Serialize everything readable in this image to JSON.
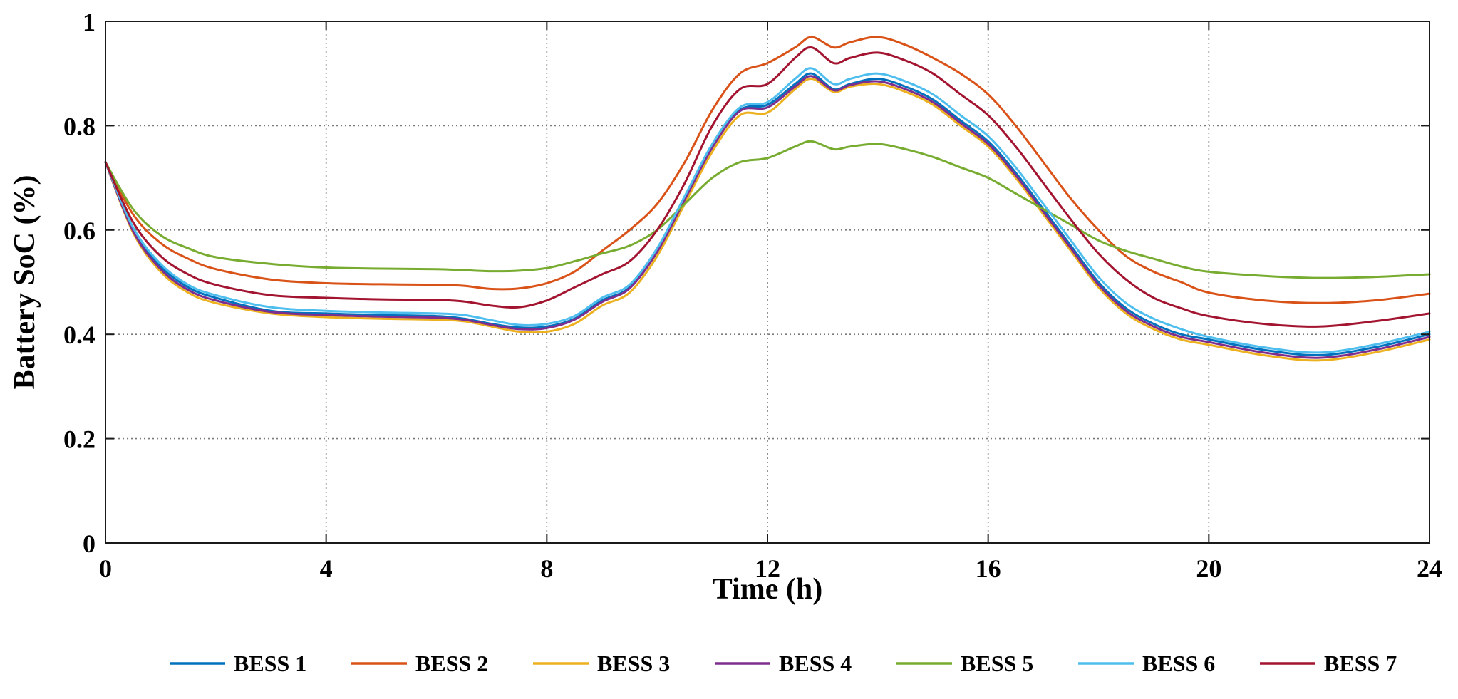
{
  "chart_data": {
    "type": "line",
    "title": "",
    "xlabel": "Time (h)",
    "ylabel": "Battery SoC (%)",
    "xlim": [
      0,
      24
    ],
    "ylim": [
      0,
      1
    ],
    "xticks": [
      0,
      4,
      8,
      12,
      16,
      20,
      24
    ],
    "yticks": [
      0,
      0.2,
      0.4,
      0.6,
      0.8,
      1
    ],
    "xtick_labels": [
      "0",
      "4",
      "8",
      "12",
      "16",
      "20",
      "24"
    ],
    "ytick_labels": [
      "0",
      "0.2",
      "0.4",
      "0.6",
      "0.8",
      "1"
    ],
    "grid": true,
    "legend_position": "bottom",
    "x": [
      0,
      0.5,
      1,
      1.5,
      2,
      3,
      4,
      5,
      6,
      6.5,
      7,
      7.5,
      8,
      8.5,
      9,
      9.5,
      10,
      10.5,
      11,
      11.5,
      12,
      12.5,
      12.8,
      13.2,
      13.5,
      14,
      14.5,
      15,
      15.5,
      16,
      16.5,
      17,
      17.5,
      18,
      18.5,
      19,
      19.5,
      20,
      21,
      22,
      23,
      24
    ],
    "series": [
      {
        "name": "BESS 1",
        "color": "#0072BD",
        "values": [
          0.73,
          0.6,
          0.53,
          0.49,
          0.47,
          0.445,
          0.44,
          0.437,
          0.435,
          0.43,
          0.42,
          0.413,
          0.415,
          0.43,
          0.465,
          0.49,
          0.56,
          0.66,
          0.76,
          0.83,
          0.84,
          0.88,
          0.9,
          0.87,
          0.88,
          0.89,
          0.875,
          0.85,
          0.81,
          0.77,
          0.71,
          0.64,
          0.57,
          0.5,
          0.45,
          0.42,
          0.4,
          0.39,
          0.37,
          0.36,
          0.375,
          0.4
        ]
      },
      {
        "name": "BESS 2",
        "color": "#D95319",
        "values": [
          0.73,
          0.63,
          0.575,
          0.545,
          0.525,
          0.505,
          0.498,
          0.496,
          0.495,
          0.493,
          0.487,
          0.488,
          0.498,
          0.52,
          0.56,
          0.6,
          0.65,
          0.73,
          0.83,
          0.9,
          0.92,
          0.95,
          0.97,
          0.95,
          0.96,
          0.97,
          0.955,
          0.93,
          0.9,
          0.86,
          0.8,
          0.73,
          0.66,
          0.6,
          0.55,
          0.52,
          0.5,
          0.48,
          0.465,
          0.46,
          0.465,
          0.478
        ]
      },
      {
        "name": "BESS 3",
        "color": "#EDB120",
        "values": [
          0.73,
          0.595,
          0.52,
          0.48,
          0.46,
          0.44,
          0.433,
          0.43,
          0.428,
          0.425,
          0.415,
          0.405,
          0.405,
          0.42,
          0.455,
          0.48,
          0.55,
          0.65,
          0.75,
          0.82,
          0.825,
          0.87,
          0.89,
          0.865,
          0.875,
          0.88,
          0.865,
          0.84,
          0.8,
          0.76,
          0.7,
          0.63,
          0.56,
          0.49,
          0.44,
          0.41,
          0.39,
          0.38,
          0.36,
          0.35,
          0.365,
          0.39
        ]
      },
      {
        "name": "BESS 4",
        "color": "#7E2F8E",
        "values": [
          0.73,
          0.598,
          0.525,
          0.485,
          0.465,
          0.443,
          0.437,
          0.434,
          0.432,
          0.428,
          0.418,
          0.41,
          0.412,
          0.428,
          0.462,
          0.488,
          0.558,
          0.658,
          0.758,
          0.828,
          0.835,
          0.875,
          0.895,
          0.868,
          0.878,
          0.885,
          0.87,
          0.845,
          0.805,
          0.765,
          0.705,
          0.635,
          0.565,
          0.495,
          0.445,
          0.415,
          0.395,
          0.385,
          0.365,
          0.355,
          0.37,
          0.395
        ]
      },
      {
        "name": "BESS 5",
        "color": "#77AC30",
        "values": [
          0.73,
          0.64,
          0.59,
          0.565,
          0.548,
          0.535,
          0.528,
          0.526,
          0.525,
          0.523,
          0.521,
          0.522,
          0.527,
          0.54,
          0.555,
          0.57,
          0.6,
          0.65,
          0.7,
          0.73,
          0.738,
          0.76,
          0.77,
          0.755,
          0.76,
          0.765,
          0.755,
          0.74,
          0.72,
          0.7,
          0.67,
          0.64,
          0.61,
          0.58,
          0.56,
          0.545,
          0.53,
          0.52,
          0.512,
          0.508,
          0.51,
          0.515
        ]
      },
      {
        "name": "BESS 6",
        "color": "#4DBEEE",
        "values": [
          0.73,
          0.605,
          0.535,
          0.495,
          0.475,
          0.452,
          0.445,
          0.442,
          0.44,
          0.437,
          0.427,
          0.418,
          0.42,
          0.435,
          0.47,
          0.495,
          0.565,
          0.665,
          0.765,
          0.835,
          0.845,
          0.89,
          0.91,
          0.88,
          0.89,
          0.9,
          0.885,
          0.86,
          0.82,
          0.78,
          0.72,
          0.65,
          0.58,
          0.51,
          0.46,
          0.43,
          0.41,
          0.395,
          0.375,
          0.365,
          0.38,
          0.405
        ]
      },
      {
        "name": "BESS 7",
        "color": "#A2142F",
        "values": [
          0.73,
          0.615,
          0.55,
          0.515,
          0.495,
          0.475,
          0.47,
          0.467,
          0.466,
          0.463,
          0.455,
          0.452,
          0.465,
          0.49,
          0.515,
          0.54,
          0.6,
          0.69,
          0.8,
          0.87,
          0.88,
          0.93,
          0.95,
          0.92,
          0.93,
          0.94,
          0.925,
          0.9,
          0.86,
          0.82,
          0.76,
          0.69,
          0.62,
          0.555,
          0.505,
          0.47,
          0.45,
          0.435,
          0.42,
          0.415,
          0.425,
          0.44
        ]
      }
    ]
  }
}
